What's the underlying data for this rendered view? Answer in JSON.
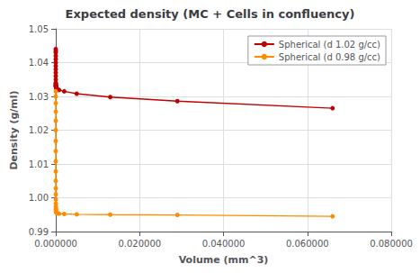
{
  "chart_data": {
    "type": "line",
    "title": "Expected density (MC + Cells in confluency)",
    "xlabel": "Volume (mm^3)",
    "ylabel": "Density (g/ml)",
    "xlim": [
      0,
      0.08
    ],
    "ylim": [
      0.99,
      1.05
    ],
    "xticks": [
      {
        "value": 0.0,
        "label": "0.000000"
      },
      {
        "value": 0.02,
        "label": "0.020000"
      },
      {
        "value": 0.04,
        "label": "0.040000"
      },
      {
        "value": 0.06,
        "label": "0.060000"
      },
      {
        "value": 0.08,
        "label": "0.080000"
      }
    ],
    "yticks": [
      0.99,
      {
        "value": 1.0,
        "label": "1.00"
      },
      1.01,
      1.02,
      1.03,
      1.04,
      1.05
    ],
    "grid": true,
    "legend": "upper right",
    "marker": "circle",
    "series": [
      {
        "name": "Spherical (d 1.02 g/cc)",
        "color": "#c00000",
        "x": [
          1e-07,
          2e-07,
          3e-07,
          5e-07,
          7e-07,
          1e-06,
          1.4e-06,
          1.9e-06,
          2.6e-06,
          3.5e-06,
          4.7e-06,
          6.3e-06,
          8.4e-06,
          1.1e-05,
          1.5e-05,
          2e-05,
          2.6e-05,
          3.4e-05,
          4.5e-05,
          5.9e-05,
          7.7e-05,
          0.0001,
          0.0002,
          0.0004,
          0.0008,
          0.002,
          0.005,
          0.013,
          0.029,
          0.066
        ],
        "values": [
          1.044,
          1.0435,
          1.043,
          1.042,
          1.041,
          1.04,
          1.039,
          1.038,
          1.037,
          1.036,
          1.035,
          1.034,
          1.0338,
          1.0335,
          1.0333,
          1.0332,
          1.0331,
          1.033,
          1.0329,
          1.0328,
          1.0327,
          1.0325,
          1.0323,
          1.0321,
          1.0319,
          1.0315,
          1.0308,
          1.0298,
          1.0286,
          1.0265
        ]
      },
      {
        "name": "Spherical (d 0.98 g/cc)",
        "color": "#ff8c00",
        "x": [
          1e-07,
          2e-07,
          3e-07,
          5e-07,
          7e-07,
          1e-06,
          1.4e-06,
          1.9e-06,
          2.6e-06,
          3.5e-06,
          4.7e-06,
          6.3e-06,
          8.4e-06,
          1.1e-05,
          1.5e-05,
          2e-05,
          2.6e-05,
          3.4e-05,
          4.5e-05,
          5.9e-05,
          7.7e-05,
          0.0001,
          0.0002,
          0.0004,
          0.0008,
          0.002,
          0.005,
          0.013,
          0.029,
          0.066
        ],
        "values": [
          1.0315,
          1.03,
          1.028,
          1.0255,
          1.0228,
          1.02,
          1.0168,
          1.0138,
          1.0108,
          1.0078,
          1.005,
          1.0028,
          1.001,
          0.9995,
          0.9983,
          0.9974,
          0.9968,
          0.9965,
          0.9962,
          0.996,
          0.9958,
          0.9957,
          0.9955,
          0.9954,
          0.9953,
          0.9952,
          0.9951,
          0.995,
          0.9949,
          0.9945
        ]
      }
    ]
  }
}
